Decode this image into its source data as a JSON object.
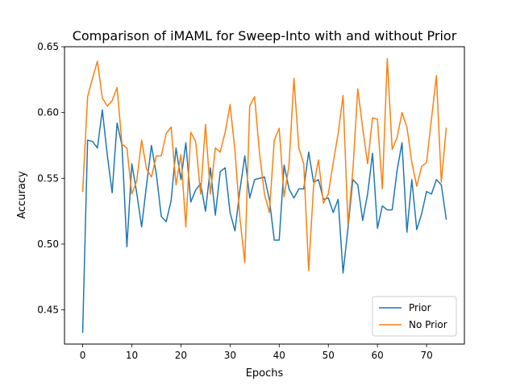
{
  "chart_data": {
    "type": "line",
    "title": "Comparison of iMAML for Sweep-Into with and without Prior",
    "xlabel": "Epochs",
    "ylabel": "Accuracy",
    "xlim": [
      -3.7,
      77.7
    ],
    "ylim": [
      0.424,
      0.65
    ],
    "xticks": [
      0,
      10,
      20,
      30,
      40,
      50,
      60,
      70
    ],
    "yticks": [
      0.45,
      0.5,
      0.55,
      0.6,
      0.65
    ],
    "ytick_labels": [
      "0.45",
      "0.50",
      "0.55",
      "0.60",
      "0.65"
    ],
    "grid": false,
    "legend_position": "lower-right",
    "x": [
      0,
      1,
      2,
      3,
      4,
      5,
      6,
      7,
      8,
      9,
      10,
      11,
      12,
      13,
      14,
      15,
      16,
      17,
      18,
      19,
      20,
      21,
      22,
      23,
      24,
      25,
      26,
      27,
      28,
      29,
      30,
      31,
      32,
      33,
      34,
      35,
      36,
      37,
      38,
      39,
      40,
      41,
      42,
      43,
      44,
      45,
      46,
      47,
      48,
      49,
      50,
      51,
      52,
      53,
      54,
      55,
      56,
      57,
      58,
      59,
      60,
      61,
      62,
      63,
      64,
      65,
      66,
      67,
      68,
      69,
      70,
      71,
      72,
      73,
      74
    ],
    "series": [
      {
        "name": "Prior",
        "color": "#1f77b4",
        "values": [
          0.433,
          0.579,
          0.578,
          0.573,
          0.602,
          0.568,
          0.539,
          0.592,
          0.575,
          0.498,
          0.561,
          0.539,
          0.513,
          0.545,
          0.575,
          0.553,
          0.521,
          0.517,
          0.533,
          0.573,
          0.549,
          0.577,
          0.532,
          0.541,
          0.546,
          0.525,
          0.558,
          0.522,
          0.555,
          0.558,
          0.524,
          0.51,
          0.541,
          0.567,
          0.535,
          0.549,
          0.55,
          0.551,
          0.534,
          0.503,
          0.503,
          0.56,
          0.542,
          0.535,
          0.542,
          0.542,
          0.57,
          0.547,
          0.549,
          0.534,
          0.535,
          0.524,
          0.534,
          0.478,
          0.512,
          0.549,
          0.545,
          0.518,
          0.538,
          0.569,
          0.512,
          0.529,
          0.526,
          0.526,
          0.556,
          0.577,
          0.509,
          0.549,
          0.511,
          0.523,
          0.54,
          0.538,
          0.549,
          0.545,
          0.519
        ]
      },
      {
        "name": "No Prior",
        "color": "#ff7f0e",
        "values": [
          0.54,
          0.612,
          0.626,
          0.639,
          0.611,
          0.605,
          0.609,
          0.619,
          0.576,
          0.573,
          0.538,
          0.548,
          0.579,
          0.557,
          0.551,
          0.567,
          0.567,
          0.584,
          0.589,
          0.545,
          0.568,
          0.513,
          0.585,
          0.578,
          0.538,
          0.591,
          0.538,
          0.573,
          0.57,
          0.585,
          0.606,
          0.571,
          0.52,
          0.486,
          0.605,
          0.612,
          0.569,
          0.538,
          0.524,
          0.579,
          0.588,
          0.536,
          0.56,
          0.626,
          0.573,
          0.561,
          0.48,
          0.544,
          0.564,
          0.531,
          0.538,
          0.562,
          0.584,
          0.613,
          0.515,
          0.556,
          0.618,
          0.588,
          0.561,
          0.596,
          0.595,
          0.542,
          0.641,
          0.572,
          0.581,
          0.6,
          0.589,
          0.562,
          0.544,
          0.559,
          0.562,
          0.595,
          0.628,
          0.547,
          0.588
        ]
      }
    ]
  }
}
